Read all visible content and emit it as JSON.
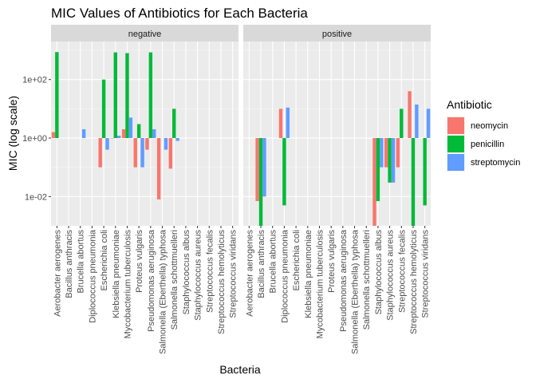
{
  "chart_data": {
    "type": "bar",
    "title": "MIC Values of Antibiotics for Each Bacteria",
    "xlabel": "Bacteria",
    "ylabel": "MIC (log scale)",
    "y_scale": "log10",
    "ylim": [
      0.001,
      2000
    ],
    "y_ticks": [
      {
        "value": 0.01,
        "label": "1e-02"
      },
      {
        "value": 1,
        "label": "1e+00"
      },
      {
        "value": 100,
        "label": "1e+02"
      }
    ],
    "bar_baseline": 1,
    "grid": true,
    "legend_position": "right",
    "legend_title": "Antibiotic",
    "categories": [
      "Aerobacter aerogenes",
      "Bacillus anthracis",
      "Brucella abortus",
      "Diplococcus pneumonia",
      "Escherichia coli",
      "Klebsiella pneumoniae",
      "Mycobacterium tuberculosis",
      "Proteus vulgaris",
      "Pseudomonas aeruginosa",
      "Salmonella (Eberthella) typhosa",
      "Salmonella schottmuelleri",
      "Staphylococcus albus",
      "Staphylococcus aureus",
      "Streptococcus fecalis",
      "Streptococcus hemolyticus",
      "Streptococcus viridans"
    ],
    "series": [
      {
        "name": "neomycin",
        "color": "#F8766D"
      },
      {
        "name": "penicillin",
        "color": "#00BA38"
      },
      {
        "name": "streptomycin",
        "color": "#619CFF"
      }
    ],
    "facets": [
      {
        "label": "negative",
        "values": {
          "neomycin": [
            1.6,
            null,
            null,
            null,
            0.1,
            1.0,
            2.0,
            0.1,
            0.4,
            0.008,
            0.09,
            null,
            null,
            null,
            null,
            null
          ],
          "penicillin": [
            870,
            null,
            null,
            null,
            100,
            850,
            800,
            3.0,
            850,
            null,
            10,
            null,
            null,
            null,
            null,
            null
          ],
          "streptomycin": [
            null,
            null,
            2.0,
            null,
            0.4,
            1.2,
            5.0,
            0.1,
            2.0,
            0.4,
            0.8,
            null,
            null,
            null,
            null,
            null
          ]
        }
      },
      {
        "label": "positive",
        "values": {
          "neomycin": [
            null,
            0.007,
            null,
            10,
            null,
            null,
            null,
            null,
            null,
            null,
            null,
            0.001,
            0.1,
            0.1,
            40,
            null
          ],
          "penicillin": [
            null,
            0.001,
            null,
            0.005,
            null,
            null,
            null,
            null,
            null,
            null,
            null,
            0.007,
            0.03,
            10,
            0.001,
            0.005
          ],
          "streptomycin": [
            null,
            0.01,
            null,
            11,
            null,
            null,
            null,
            null,
            null,
            null,
            null,
            0.1,
            0.03,
            null,
            14,
            10
          ]
        }
      }
    ]
  }
}
